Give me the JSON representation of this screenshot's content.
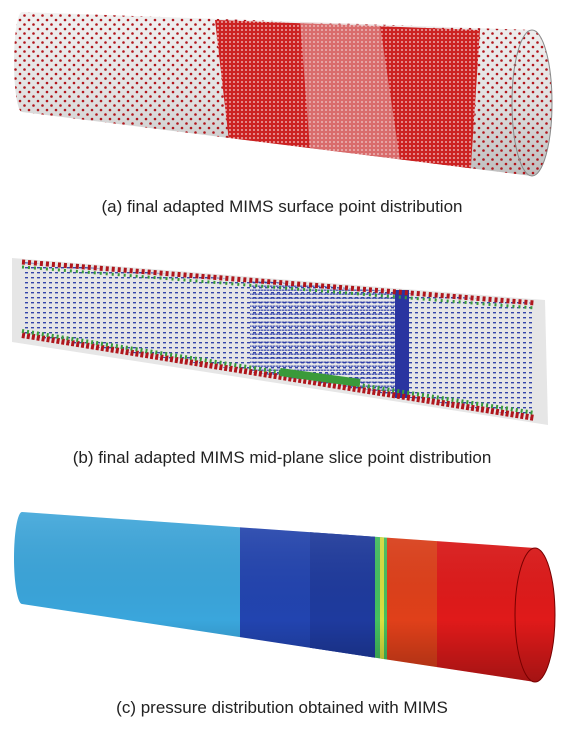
{
  "panels": [
    {
      "caption": "(a) final adapted MIMS surface point distribution"
    },
    {
      "caption": "(b) final adapted MIMS mid-plane slice point distribution"
    },
    {
      "caption": "(c) pressure distribution obtained with MIMS"
    }
  ]
}
